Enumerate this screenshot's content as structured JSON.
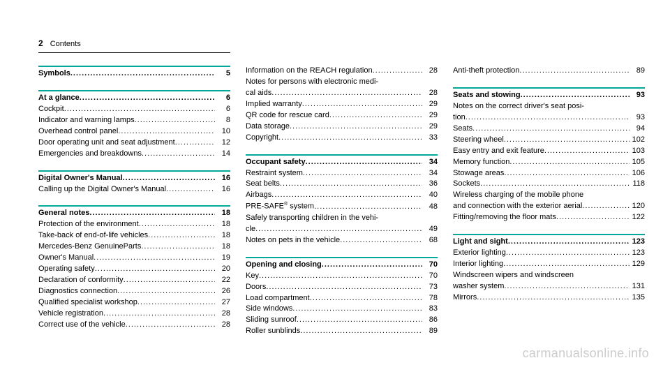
{
  "header": {
    "page_number": "2",
    "title": "Contents"
  },
  "watermark": "carmanualsonline.info",
  "colors": {
    "rule": "#00a89c",
    "text": "#000000",
    "background": "#ffffff",
    "watermark": "#cccccc"
  },
  "columns": [
    {
      "sections": [
        {
          "entries": [
            {
              "label": "Symbols",
              "page": "5",
              "bold": true
            }
          ]
        },
        {
          "entries": [
            {
              "label": "At a glance",
              "page": "6",
              "bold": true
            },
            {
              "label": "Cockpit",
              "page": "6"
            },
            {
              "label": "Indicator and warning lamps",
              "page": "8"
            },
            {
              "label": "Overhead control panel",
              "page": "10"
            },
            {
              "label": "Door operating unit and seat adjustment",
              "page": "12"
            },
            {
              "label": "Emergencies and breakdowns",
              "page": "14"
            }
          ]
        },
        {
          "entries": [
            {
              "label": "Digital Owner's Manual",
              "page": "16",
              "bold": true
            },
            {
              "label": "Calling up the Digital Owner's Manual",
              "page": "16"
            }
          ]
        },
        {
          "entries": [
            {
              "label": "General notes",
              "page": "18",
              "bold": true
            },
            {
              "label": "Protection of the environment",
              "page": "18"
            },
            {
              "label": "Take-back of end-of-life vehicles",
              "page": "18"
            },
            {
              "label": "Mercedes-Benz GenuineParts",
              "page": "18"
            },
            {
              "label": "Owner's Manual",
              "page": "19"
            },
            {
              "label": "Operating safety",
              "page": "20"
            },
            {
              "label": "Declaration of conformity",
              "page": "22"
            },
            {
              "label": "Diagnostics connection",
              "page": "26"
            },
            {
              "label": "Qualified specialist workshop",
              "page": "27"
            },
            {
              "label": "Vehicle registration",
              "page": "28"
            },
            {
              "label": "Correct use of the vehicle",
              "page": "28"
            }
          ]
        }
      ]
    },
    {
      "sections": [
        {
          "entries": [
            {
              "label": "Information on the REACH regulation",
              "page": "28"
            },
            {
              "pre": "Notes for persons with electronic medi-",
              "label": "cal aids",
              "page": "28"
            },
            {
              "label": "Implied warranty",
              "page": "29"
            },
            {
              "label": "QR code for rescue card",
              "page": "29"
            },
            {
              "label": "Data storage",
              "page": "29"
            },
            {
              "label": "Copyright",
              "page": "33"
            }
          ],
          "noRule": true
        },
        {
          "entries": [
            {
              "label": "Occupant safety",
              "page": "34",
              "bold": true
            },
            {
              "label": "Restraint system",
              "page": "34"
            },
            {
              "label": "Seat belts",
              "page": "36"
            },
            {
              "label": "Airbags",
              "page": "40"
            },
            {
              "html": "PRE-SAFE<sup>®</sup> system",
              "page": "48"
            },
            {
              "pre": "Safely transporting children in the vehi-",
              "label": "cle",
              "page": "49"
            },
            {
              "label": "Notes on pets in the vehicle",
              "page": "68"
            }
          ]
        },
        {
          "entries": [
            {
              "label": "Opening and closing",
              "page": "70",
              "bold": true
            },
            {
              "label": "Key",
              "page": "70"
            },
            {
              "label": "Doors",
              "page": "73"
            },
            {
              "label": "Load compartment",
              "page": "78"
            },
            {
              "label": "Side windows",
              "page": "83"
            },
            {
              "label": "Sliding sunroof",
              "page": "86"
            },
            {
              "label": "Roller sunblinds",
              "page": "89"
            }
          ]
        }
      ]
    },
    {
      "sections": [
        {
          "entries": [
            {
              "label": "Anti-theft protection",
              "page": "89"
            }
          ],
          "noRule": true
        },
        {
          "entries": [
            {
              "label": "Seats and stowing",
              "page": "93",
              "bold": true
            },
            {
              "pre": "Notes on the correct driver's seat posi-",
              "label": "tion",
              "page": "93"
            },
            {
              "label": "Seats",
              "page": "94"
            },
            {
              "label": "Steering wheel",
              "page": "102"
            },
            {
              "label": "Easy entry and exit feature",
              "page": "103"
            },
            {
              "label": "Memory function",
              "page": "105"
            },
            {
              "label": "Stowage areas",
              "page": "106"
            },
            {
              "label": "Sockets",
              "page": "118"
            },
            {
              "pre": "Wireless charging of the mobile phone",
              "label": "and connection with the exterior aerial",
              "page": "120"
            },
            {
              "label": "Fitting/removing the floor mats",
              "page": "122"
            }
          ]
        },
        {
          "entries": [
            {
              "label": "Light and sight",
              "page": "123",
              "bold": true
            },
            {
              "label": "Exterior lighting",
              "page": "123"
            },
            {
              "label": "Interior lighting",
              "page": "129"
            },
            {
              "pre": "Windscreen wipers and windscreen",
              "label": "washer system",
              "page": "131"
            },
            {
              "label": "Mirrors",
              "page": "135"
            }
          ]
        }
      ]
    }
  ]
}
